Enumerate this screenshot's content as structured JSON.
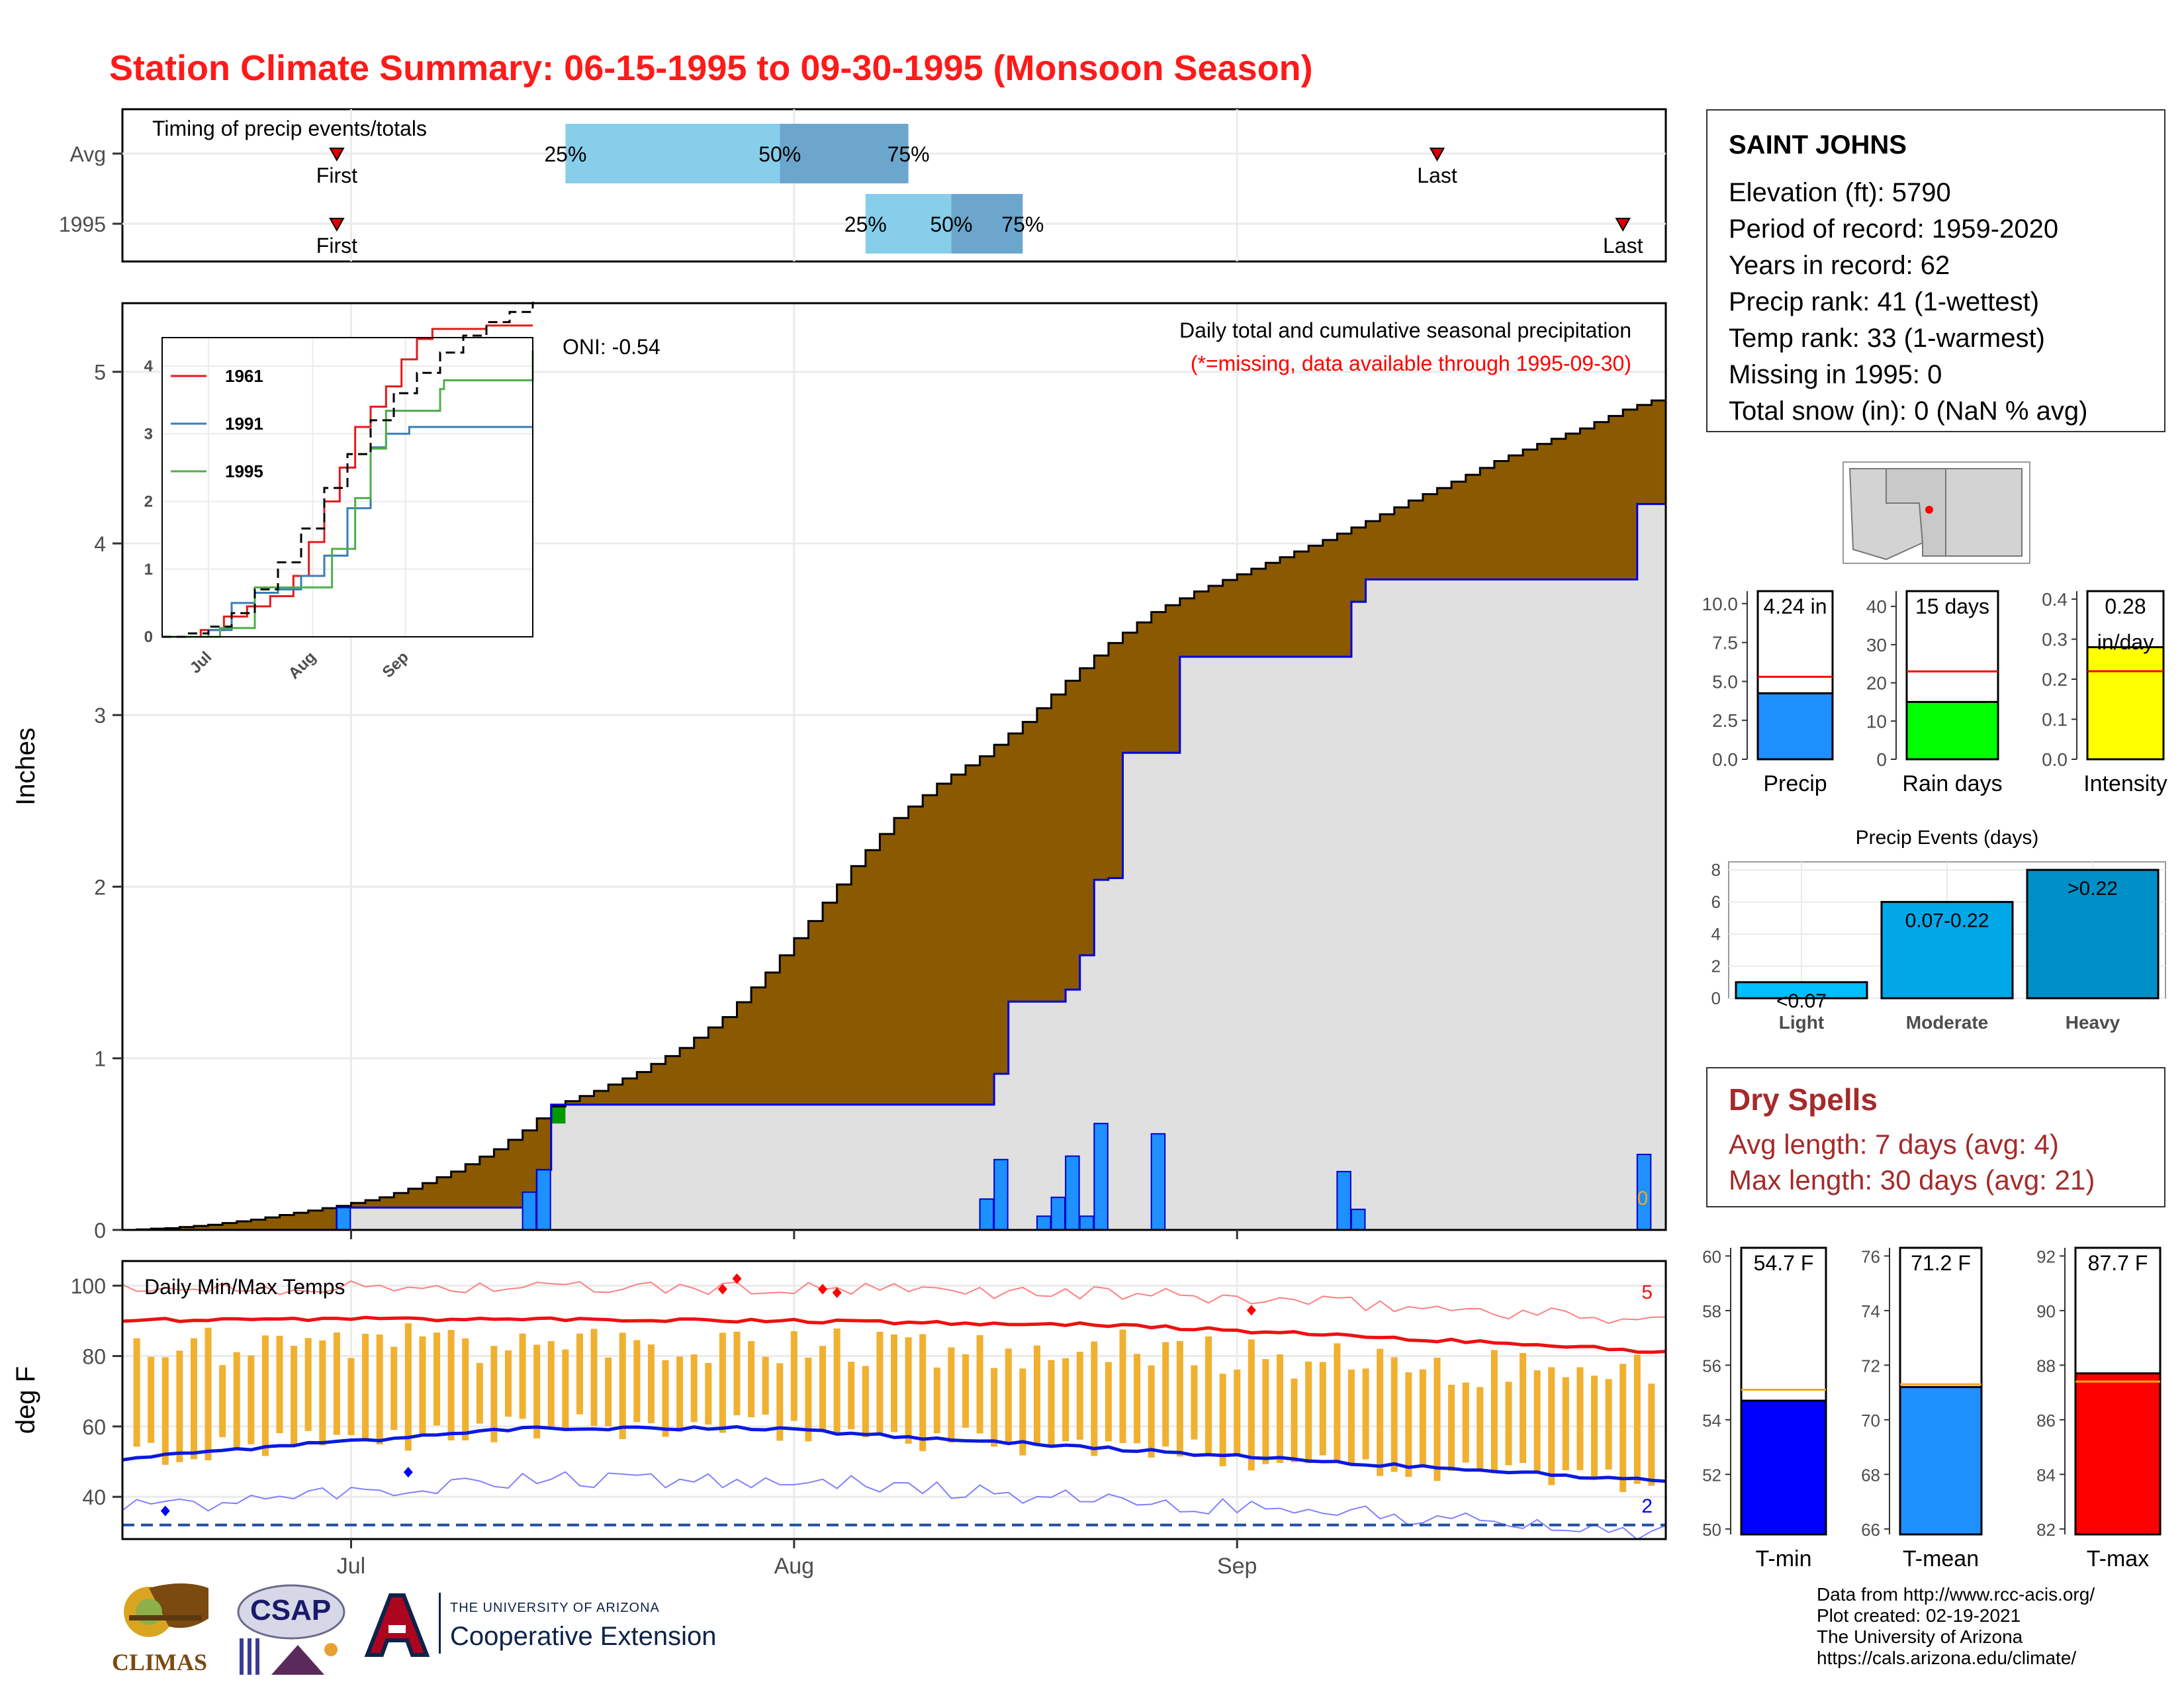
{
  "title": "Station Climate Summary: 06-15-1995 to 09-30-1995 (Monsoon Season)",
  "station": {
    "name": "SAINT JOHNS",
    "lines": [
      "Elevation (ft): 5790",
      "Period of record: 1959-2020",
      "Years in record: 62",
      "Precip rank: 41 (1-wettest)",
      "Temp rank: 33 (1-warmest)",
      "Missing in 1995: 0",
      "Total snow (in): 0 (NaN % avg)"
    ]
  },
  "dry_spells": {
    "title": "Dry Spells",
    "lines": [
      "Avg length: 7 days (avg: 4)",
      "Max length: 30 days (avg: 21)"
    ]
  },
  "footer": [
    "Data from http://www.rcc-acis.org/",
    "Plot created: 02-19-2021",
    "The University of Arizona",
    "https://cals.arizona.edu/climate/"
  ],
  "logos": {
    "climas": "CLIMAS",
    "csap": "CSAP",
    "ua_small": "THE UNIVERSITY OF ARIZONA",
    "ua_big": "Cooperative Extension"
  },
  "colors": {
    "title": "#ff1a1a",
    "cumulative_fill": "#8b5a00",
    "current_fill": "#e0e0e0",
    "daily_bar": "#1e90ff",
    "tmax_line": "#ee1111",
    "tmin_line": "#0a1adf",
    "temp_bar": "#f0b030"
  },
  "chart_data": [
    {
      "type": "timeline",
      "name": "timing",
      "label": "Timing of precip events/totals",
      "x_range": [
        "06-15",
        "09-30"
      ],
      "rows": [
        {
          "label": "Avg",
          "first": "06-30",
          "p25": "07-16",
          "p50": "07-31",
          "p75": "08-09",
          "last": "09-15",
          "first_label": "First",
          "last_label": "Last",
          "p25_label": "25%",
          "p50_label": "50%",
          "p75_label": "75%"
        },
        {
          "label": "1995",
          "first": "06-30",
          "p25": "08-06",
          "p50": "08-12",
          "p75": "08-17",
          "last": "09-28",
          "first_label": "First",
          "last_label": "Last",
          "p25_label": "25%",
          "p50_label": "50%",
          "p75_label": "75%"
        }
      ]
    },
    {
      "type": "area",
      "name": "cumulative-precip",
      "label": "Daily total and cumulative seasonal precipitation",
      "note": "(*=missing, data available through 1995-09-30)",
      "oni": "ONI: -0.54",
      "ylabel": "Inches",
      "ylim": [
        0,
        5.4
      ],
      "yticks": [
        0,
        1,
        2,
        3,
        4,
        5
      ],
      "xticks": [
        "Jul",
        "Aug",
        "Sep"
      ],
      "days_total": 108,
      "end_value_label": "0",
      "avg_cumulative": [
        [
          0,
          0
        ],
        [
          3,
          0.01
        ],
        [
          6,
          0.03
        ],
        [
          9,
          0.06
        ],
        [
          12,
          0.1
        ],
        [
          15,
          0.14
        ],
        [
          18,
          0.19
        ],
        [
          20,
          0.24
        ],
        [
          23,
          0.34
        ],
        [
          26,
          0.47
        ],
        [
          28,
          0.58
        ],
        [
          30,
          0.72
        ],
        [
          33,
          0.81
        ],
        [
          36,
          0.92
        ],
        [
          39,
          1.06
        ],
        [
          42,
          1.24
        ],
        [
          45,
          1.5
        ],
        [
          48,
          1.8
        ],
        [
          51,
          2.12
        ],
        [
          54,
          2.4
        ],
        [
          57,
          2.6
        ],
        [
          60,
          2.76
        ],
        [
          63,
          2.96
        ],
        [
          66,
          3.2
        ],
        [
          69,
          3.42
        ],
        [
          72,
          3.6
        ],
        [
          75,
          3.72
        ],
        [
          78,
          3.82
        ],
        [
          81,
          3.92
        ],
        [
          84,
          4.02
        ],
        [
          87,
          4.13
        ],
        [
          90,
          4.25
        ],
        [
          93,
          4.36
        ],
        [
          96,
          4.48
        ],
        [
          99,
          4.58
        ],
        [
          102,
          4.67
        ],
        [
          105,
          4.78
        ],
        [
          108,
          4.86
        ],
        [
          111,
          4.95
        ]
      ],
      "current_cumulative": [
        [
          0,
          0
        ],
        [
          15,
          0.13
        ],
        [
          28,
          0.13
        ],
        [
          29,
          0.35
        ],
        [
          30,
          0.73
        ],
        [
          60,
          0.73
        ],
        [
          61,
          0.91
        ],
        [
          62,
          1.33
        ],
        [
          65,
          1.33
        ],
        [
          66,
          1.4
        ],
        [
          67,
          1.6
        ],
        [
          68,
          2.04
        ],
        [
          69,
          2.05
        ],
        [
          70,
          2.78
        ],
        [
          73,
          2.78
        ],
        [
          74,
          3.34
        ],
        [
          85,
          3.34
        ],
        [
          86,
          3.66
        ],
        [
          87,
          3.79
        ],
        [
          105,
          3.79
        ],
        [
          106,
          4.23
        ],
        [
          108,
          4.23
        ]
      ],
      "daily_bars": [
        {
          "day": 15,
          "value": 0.13
        },
        {
          "day": 28,
          "value": 0.22
        },
        {
          "day": 29,
          "value": 0.35
        },
        {
          "day": 60,
          "value": 0.18
        },
        {
          "day": 61,
          "value": 0.41
        },
        {
          "day": 64,
          "value": 0.08
        },
        {
          "day": 65,
          "value": 0.19
        },
        {
          "day": 66,
          "value": 0.43
        },
        {
          "day": 67,
          "value": 0.08
        },
        {
          "day": 68,
          "value": 0.62
        },
        {
          "day": 72,
          "value": 0.56
        },
        {
          "day": 85,
          "value": 0.34
        },
        {
          "day": 86,
          "value": 0.12
        },
        {
          "day": 106,
          "value": 0.44
        }
      ],
      "inset": {
        "type": "line",
        "yticks": [
          0,
          1,
          2,
          3,
          4
        ],
        "xticks": [
          "Jul",
          "Aug",
          "Sep"
        ],
        "series": [
          {
            "name": "1961",
            "color": "#e41a1c",
            "points": [
              [
                0,
                0
              ],
              [
                10,
                0.1
              ],
              [
                16,
                0.3
              ],
              [
                22,
                0.45
              ],
              [
                28,
                0.6
              ],
              [
                34,
                0.9
              ],
              [
                38,
                1.4
              ],
              [
                42,
                2.0
              ],
              [
                46,
                2.5
              ],
              [
                50,
                3.1
              ],
              [
                54,
                3.4
              ],
              [
                58,
                3.7
              ],
              [
                62,
                4.1
              ],
              [
                66,
                4.4
              ],
              [
                70,
                4.55
              ],
              [
                78,
                4.55
              ],
              [
                84,
                4.6
              ],
              [
                96,
                4.6
              ]
            ]
          },
          {
            "name": "1991",
            "color": "#377eb8",
            "points": [
              [
                0,
                0
              ],
              [
                12,
                0.1
              ],
              [
                18,
                0.5
              ],
              [
                24,
                0.65
              ],
              [
                30,
                0.7
              ],
              [
                36,
                0.9
              ],
              [
                42,
                1.2
              ],
              [
                48,
                1.9
              ],
              [
                54,
                2.8
              ],
              [
                58,
                3.0
              ],
              [
                64,
                3.1
              ],
              [
                70,
                3.1
              ],
              [
                96,
                3.1
              ]
            ]
          },
          {
            "name": "1995",
            "color": "#4daf4a",
            "points": [
              [
                0,
                0
              ],
              [
                15,
                0.13
              ],
              [
                24,
                0.73
              ],
              [
                40,
                0.73
              ],
              [
                44,
                1.3
              ],
              [
                50,
                2.05
              ],
              [
                54,
                2.78
              ],
              [
                58,
                3.34
              ],
              [
                70,
                3.34
              ],
              [
                72,
                3.66
              ],
              [
                73,
                3.79
              ],
              [
                92,
                3.79
              ],
              [
                96,
                4.23
              ]
            ]
          },
          {
            "name": "avg",
            "color": "#000000",
            "points": [
              [
                0,
                0
              ],
              [
                6,
                0.05
              ],
              [
                12,
                0.15
              ],
              [
                18,
                0.35
              ],
              [
                24,
                0.7
              ],
              [
                30,
                1.1
              ],
              [
                36,
                1.6
              ],
              [
                42,
                2.2
              ],
              [
                48,
                2.7
              ],
              [
                54,
                3.2
              ],
              [
                60,
                3.6
              ],
              [
                66,
                3.9
              ],
              [
                72,
                4.2
              ],
              [
                78,
                4.45
              ],
              [
                84,
                4.65
              ],
              [
                90,
                4.8
              ],
              [
                96,
                4.95
              ]
            ]
          }
        ]
      }
    },
    {
      "type": "bar",
      "name": "precip-total",
      "categories": [
        "Precip"
      ],
      "values": [
        4.24
      ],
      "avg": 5.3,
      "value_label": "4.24 in",
      "ylim": [
        0,
        10.8
      ],
      "yticks": [
        "0.0",
        "2.5",
        "5.0",
        "7.5",
        "10.0"
      ],
      "color": "#1e90ff"
    },
    {
      "type": "bar",
      "name": "rain-days",
      "categories": [
        "Rain days"
      ],
      "values": [
        15
      ],
      "avg": 23,
      "value_label": "15 days",
      "ylim": [
        0,
        44
      ],
      "yticks": [
        "0",
        "10",
        "20",
        "30",
        "40"
      ],
      "color": "#00ff00"
    },
    {
      "type": "bar",
      "name": "intensity",
      "categories": [
        "Intensity"
      ],
      "values": [
        0.28
      ],
      "avg": 0.22,
      "value_label": "0.28",
      "value_label2": "in/day",
      "ylim": [
        0,
        0.42
      ],
      "yticks": [
        "0.0",
        "0.1",
        "0.2",
        "0.3",
        "0.4"
      ],
      "color": "#ffff00"
    },
    {
      "type": "bar",
      "name": "precip-events",
      "title": "Precip Events (days)",
      "categories": [
        "Light",
        "Moderate",
        "Heavy"
      ],
      "values": [
        1,
        6,
        8
      ],
      "value_labels": [
        "<0.07",
        "0.07-0.22",
        ">0.22"
      ],
      "ylim": [
        0,
        8.5
      ],
      "yticks": [
        "0",
        "2",
        "4",
        "6",
        "8"
      ],
      "colors": [
        "#00bfff",
        "#00a8e8",
        "#0090c8"
      ]
    },
    {
      "type": "line",
      "name": "daily-temps",
      "label": "Daily Min/Max Temps",
      "ylabel": "deg F",
      "ylim": [
        28,
        107
      ],
      "yticks": [
        40,
        60,
        80,
        100
      ],
      "xticks": [
        "Jul",
        "Aug",
        "Sep"
      ],
      "freeze_line": 32,
      "max_count_label": "5",
      "min_count_label": "2",
      "record_highs": [
        [
          42,
          99
        ],
        [
          43,
          102
        ],
        [
          49,
          99
        ],
        [
          50,
          98
        ],
        [
          79,
          93
        ]
      ],
      "record_lows": [
        [
          3,
          36
        ],
        [
          20,
          47
        ]
      ]
    },
    {
      "type": "bar",
      "name": "t-min",
      "categories": [
        "T-min"
      ],
      "values": [
        54.7
      ],
      "avg": 55.1,
      "value_label": "54.7 F",
      "ylim": [
        49.8,
        60.3
      ],
      "yticks": [
        "50",
        "52",
        "54",
        "56",
        "58",
        "60"
      ],
      "color": "#0000ff"
    },
    {
      "type": "bar",
      "name": "t-mean",
      "categories": [
        "T-mean"
      ],
      "values": [
        71.2
      ],
      "avg": 71.3,
      "value_label": "71.2 F",
      "ylim": [
        65.8,
        76.3
      ],
      "yticks": [
        "66",
        "68",
        "70",
        "72",
        "74",
        "76"
      ],
      "color": "#1e90ff"
    },
    {
      "type": "bar",
      "name": "t-max",
      "categories": [
        "T-max"
      ],
      "values": [
        87.7
      ],
      "avg": 87.4,
      "value_label": "87.7 F",
      "ylim": [
        81.8,
        92.3
      ],
      "yticks": [
        "82",
        "84",
        "86",
        "88",
        "90",
        "92"
      ],
      "color": "#ff0000"
    }
  ]
}
